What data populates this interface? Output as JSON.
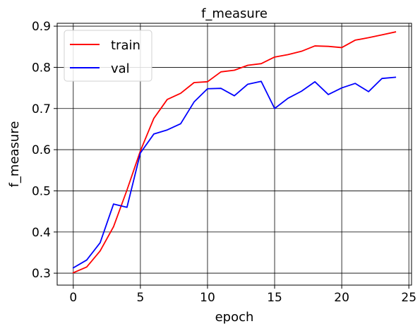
{
  "chart_data": {
    "type": "line",
    "title": "f_measure",
    "xlabel": "epoch",
    "ylabel": "f_measure",
    "xlim": [
      -1.2,
      25.2
    ],
    "ylim": [
      0.271,
      0.907
    ],
    "xticks": [
      0,
      5,
      10,
      15,
      20,
      25
    ],
    "yticks": [
      0.3,
      0.4,
      0.5,
      0.6,
      0.7,
      0.8,
      0.9
    ],
    "grid": true,
    "legend_position": "top-left",
    "x": [
      0,
      1,
      2,
      3,
      4,
      5,
      6,
      7,
      8,
      9,
      10,
      11,
      12,
      13,
      14,
      15,
      16,
      17,
      18,
      19,
      20,
      21,
      22,
      23,
      24
    ],
    "series": [
      {
        "name": "train",
        "color": "#ff0000",
        "values": [
          0.301,
          0.315,
          0.354,
          0.413,
          0.502,
          0.597,
          0.676,
          0.722,
          0.737,
          0.763,
          0.765,
          0.789,
          0.793,
          0.805,
          0.809,
          0.825,
          0.831,
          0.839,
          0.852,
          0.851,
          0.848,
          0.866,
          0.872,
          0.879,
          0.886
        ]
      },
      {
        "name": "val",
        "color": "#0000ff",
        "values": [
          0.313,
          0.332,
          0.374,
          0.468,
          0.46,
          0.592,
          0.638,
          0.648,
          0.663,
          0.716,
          0.748,
          0.749,
          0.731,
          0.759,
          0.766,
          0.7,
          0.725,
          0.742,
          0.765,
          0.734,
          0.75,
          0.761,
          0.741,
          0.773,
          0.776
        ]
      }
    ]
  }
}
